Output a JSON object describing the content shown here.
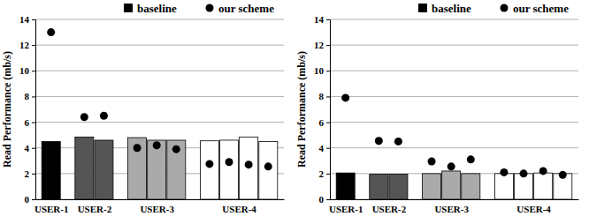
{
  "chart_data": [
    {
      "type": "bar",
      "y_label": "Read Performance (mb/s)",
      "categories": [
        "USER-1",
        "USER-2",
        null,
        "USER-3",
        null,
        null,
        "USER-4",
        null,
        null,
        null
      ],
      "ylim": [
        0,
        14
      ],
      "yticks": [
        0,
        2,
        4,
        6,
        8,
        10,
        12,
        14
      ],
      "grid": true,
      "legend": "top",
      "series": [
        {
          "name": "baseline",
          "type": "bar",
          "color": "#000000",
          "colors": [
            "#000000",
            "#555555",
            "#555555",
            "#aaaaaa",
            "#aaaaaa",
            "#aaaaaa",
            "#ffffff",
            "#ffffff",
            "#ffffff",
            "#ffffff"
          ],
          "values": [
            4.5,
            4.85,
            4.6,
            4.8,
            4.6,
            4.6,
            4.55,
            4.6,
            4.85,
            4.5
          ]
        },
        {
          "name": "our scheme",
          "type": "scatter",
          "marker": "circle",
          "color": "#000000",
          "values": [
            13.0,
            6.4,
            6.5,
            4.0,
            4.2,
            3.9,
            2.75,
            2.9,
            2.7,
            2.55
          ]
        }
      ]
    },
    {
      "type": "bar",
      "y_label": "Read Performance (mb/s)",
      "categories": [
        "USER-1",
        "USER-2",
        null,
        "USER-3",
        null,
        null,
        "USER-4",
        null,
        null,
        null
      ],
      "ylim": [
        0,
        14
      ],
      "yticks": [
        0,
        2,
        4,
        6,
        8,
        10,
        12,
        14
      ],
      "grid": true,
      "legend": "top",
      "series": [
        {
          "name": "baseline",
          "type": "bar",
          "color": "#000000",
          "colors": [
            "#000000",
            "#555555",
            "#555555",
            "#aaaaaa",
            "#aaaaaa",
            "#aaaaaa",
            "#ffffff",
            "#ffffff",
            "#ffffff",
            "#ffffff"
          ],
          "values": [
            2.05,
            1.95,
            1.95,
            2.0,
            2.2,
            2.0,
            2.0,
            2.0,
            2.05,
            2.0
          ]
        },
        {
          "name": "our scheme",
          "type": "scatter",
          "marker": "circle",
          "color": "#000000",
          "values": [
            7.9,
            4.55,
            4.5,
            2.95,
            2.55,
            3.1,
            2.1,
            2.0,
            2.2,
            1.9
          ]
        }
      ]
    }
  ]
}
